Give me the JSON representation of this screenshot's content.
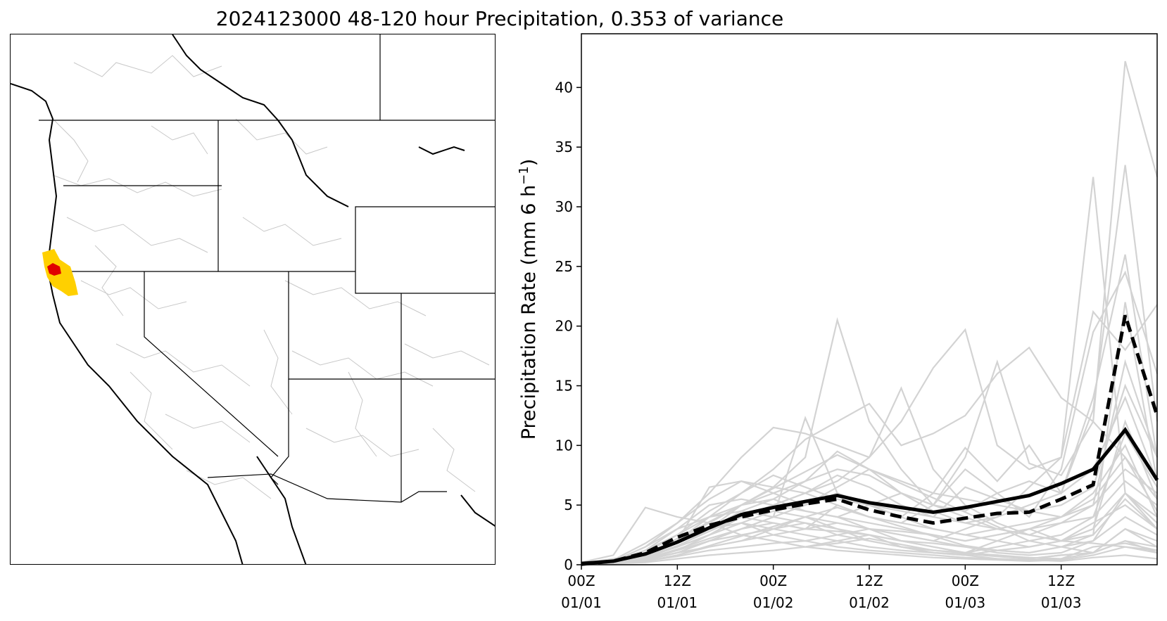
{
  "title": "2024123000 48-120 hour Precipitation, 0.353 of variance",
  "colors": {
    "member": "#d3d3d3",
    "mean": "#000000",
    "region_outer": "#ffd000",
    "region_core": "#e00000",
    "basin_lines": "#c8c8c8",
    "borders": "#000000"
  },
  "map": {
    "type": "map",
    "highlight_region": "northwest California coast (yellow area with red core)"
  },
  "chart_data": {
    "type": "line",
    "ylabel": "Precipitation Rate (mm 6 h",
    "ylabel_sup": "−1",
    "ylabel_close": ")",
    "ylim": [
      0,
      44.5
    ],
    "xlim": [
      0,
      18
    ],
    "yticks": [
      0,
      5,
      10,
      15,
      20,
      25,
      30,
      35,
      40
    ],
    "xticks": [
      {
        "x": 0,
        "line1": "00Z",
        "line2": "01/01"
      },
      {
        "x": 3,
        "line1": "12Z",
        "line2": "01/01"
      },
      {
        "x": 6,
        "line1": "00Z",
        "line2": "01/02"
      },
      {
        "x": 9,
        "line1": "12Z",
        "line2": "01/02"
      },
      {
        "x": 12,
        "line1": "00Z",
        "line2": "01/03"
      },
      {
        "x": 15,
        "line1": "12Z",
        "line2": "01/03"
      }
    ],
    "x": [
      0,
      1,
      2,
      3,
      4,
      5,
      6,
      7,
      8,
      9,
      10,
      11,
      12,
      13,
      14,
      15,
      16,
      17,
      18
    ],
    "series": [
      {
        "style": "solid-black",
        "values": [
          0.1,
          0.3,
          0.9,
          1.9,
          3.1,
          4.2,
          4.8,
          5.3,
          5.8,
          5.2,
          4.8,
          4.4,
          4.8,
          5.3,
          5.8,
          6.8,
          8.0,
          11.3,
          7.1
        ]
      },
      {
        "style": "dashed-black",
        "values": [
          0.05,
          0.3,
          1.0,
          2.3,
          3.3,
          4.0,
          4.6,
          5.1,
          5.5,
          4.6,
          4.0,
          3.5,
          3.9,
          4.3,
          4.4,
          5.5,
          6.7,
          20.9,
          12.5
        ]
      }
    ],
    "members": [
      [
        0.2,
        0.8,
        4.8,
        4.0,
        3.5,
        2.5,
        2.0,
        1.5,
        2.0,
        2.5,
        1.5,
        1.0,
        0.8,
        0.5,
        0.4,
        0.3,
        0.6,
        0.8,
        0.5
      ],
      [
        0.1,
        0.5,
        1.0,
        2.0,
        3.0,
        5.0,
        6.5,
        9.0,
        20.5,
        12.0,
        8.0,
        5.0,
        4.0,
        3.0,
        2.5,
        2.0,
        1.8,
        1.5,
        1.2
      ],
      [
        0.0,
        0.3,
        1.5,
        3.5,
        6.0,
        9.0,
        11.5,
        11.0,
        10.0,
        9.0,
        14.8,
        8.0,
        5.0,
        3.5,
        2.5,
        2.0,
        3.0,
        6.0,
        4.0
      ],
      [
        0.0,
        0.2,
        0.8,
        2.0,
        4.0,
        6.0,
        8.0,
        10.5,
        12.0,
        13.5,
        10.0,
        11.0,
        12.5,
        16.0,
        18.2,
        14.0,
        12.0,
        9.0,
        5.5
      ],
      [
        0.0,
        0.1,
        0.5,
        1.2,
        2.5,
        4.0,
        5.0,
        6.0,
        7.0,
        9.0,
        12.0,
        16.5,
        19.7,
        10.0,
        8.0,
        9.0,
        32.5,
        6.0,
        3.0
      ],
      [
        0.0,
        0.2,
        1.0,
        2.0,
        3.0,
        4.5,
        5.5,
        7.0,
        8.0,
        7.5,
        6.0,
        5.0,
        9.0,
        17.0,
        8.5,
        7.5,
        12.0,
        42.2,
        32.5
      ],
      [
        0.0,
        0.4,
        1.8,
        3.5,
        5.5,
        7.0,
        6.0,
        5.0,
        6.5,
        8.0,
        6.0,
        4.5,
        3.5,
        4.0,
        6.5,
        9.0,
        21.2,
        18.0,
        21.8
      ],
      [
        0.0,
        0.1,
        0.4,
        1.0,
        2.0,
        3.0,
        4.0,
        12.3,
        6.0,
        5.0,
        4.0,
        6.0,
        9.8,
        7.0,
        10.0,
        6.0,
        13.0,
        33.5,
        12.0
      ],
      [
        0.0,
        0.3,
        1.2,
        2.5,
        4.0,
        5.0,
        5.5,
        4.5,
        4.0,
        3.0,
        2.5,
        2.0,
        3.0,
        4.0,
        5.0,
        6.0,
        14.0,
        26.0,
        9.0
      ],
      [
        0.0,
        0.2,
        0.7,
        1.5,
        3.0,
        4.0,
        3.5,
        3.0,
        5.0,
        4.0,
        3.5,
        5.0,
        8.0,
        6.0,
        4.0,
        8.0,
        19.5,
        24.5,
        16.0
      ],
      [
        0.0,
        0.1,
        0.3,
        0.8,
        1.5,
        2.0,
        3.0,
        4.0,
        3.0,
        2.0,
        1.5,
        1.2,
        1.0,
        2.0,
        3.0,
        2.0,
        2.5,
        22.0,
        7.0
      ],
      [
        0.0,
        0.3,
        0.9,
        2.0,
        6.5,
        7.0,
        6.5,
        6.0,
        7.5,
        6.5,
        5.0,
        4.0,
        6.5,
        5.5,
        4.5,
        5.0,
        6.5,
        15.0,
        9.0
      ],
      [
        0.0,
        0.2,
        0.6,
        1.5,
        2.5,
        3.5,
        2.5,
        2.0,
        2.5,
        3.0,
        2.0,
        1.5,
        1.0,
        1.5,
        2.0,
        1.5,
        1.0,
        3.0,
        1.5
      ],
      [
        0.0,
        0.1,
        0.5,
        1.0,
        2.0,
        2.5,
        2.0,
        1.5,
        1.8,
        2.2,
        1.7,
        1.2,
        1.0,
        0.8,
        0.6,
        0.5,
        1.0,
        2.0,
        1.0
      ],
      [
        0.0,
        0.2,
        1.0,
        2.5,
        4.5,
        6.0,
        7.5,
        6.5,
        5.5,
        5.0,
        4.5,
        4.0,
        3.5,
        3.0,
        2.5,
        3.5,
        5.0,
        8.0,
        6.0
      ],
      [
        0.0,
        0.1,
        0.4,
        1.0,
        1.5,
        2.0,
        2.5,
        3.0,
        3.5,
        3.0,
        2.5,
        2.0,
        1.5,
        1.0,
        0.8,
        1.0,
        2.0,
        4.0,
        2.5
      ],
      [
        0.0,
        0.3,
        1.5,
        3.0,
        5.0,
        5.5,
        5.0,
        4.5,
        4.0,
        3.5,
        3.0,
        2.5,
        2.0,
        2.5,
        3.0,
        4.0,
        6.0,
        10.0,
        4.0
      ],
      [
        0.0,
        0.2,
        0.8,
        1.8,
        3.0,
        3.5,
        3.0,
        2.5,
        2.0,
        1.5,
        1.2,
        1.0,
        0.8,
        1.2,
        1.5,
        2.0,
        3.5,
        5.0,
        3.0
      ],
      [
        0.0,
        0.1,
        0.3,
        0.7,
        1.2,
        1.5,
        1.8,
        2.0,
        1.5,
        1.2,
        1.0,
        0.8,
        0.6,
        0.5,
        0.4,
        0.5,
        1.5,
        1.8,
        1.2
      ],
      [
        0.0,
        0.2,
        0.7,
        1.5,
        2.5,
        3.5,
        4.5,
        4.0,
        3.5,
        3.0,
        2.8,
        2.5,
        2.0,
        2.5,
        3.0,
        3.5,
        4.0,
        7.0,
        5.0
      ],
      [
        0.0,
        0.1,
        0.4,
        1.0,
        2.0,
        3.0,
        4.0,
        5.0,
        6.0,
        5.0,
        4.0,
        3.0,
        2.5,
        2.0,
        1.5,
        2.0,
        3.0,
        12.0,
        5.5
      ],
      [
        0.0,
        0.2,
        0.6,
        1.2,
        2.0,
        2.5,
        3.0,
        3.5,
        2.5,
        2.0,
        1.5,
        1.0,
        0.9,
        0.7,
        0.5,
        0.8,
        1.0,
        3.0,
        2.0
      ],
      [
        0.0,
        0.3,
        1.0,
        2.0,
        3.5,
        5.0,
        6.0,
        7.0,
        9.5,
        8.0,
        7.0,
        6.0,
        5.5,
        5.0,
        4.5,
        4.0,
        5.0,
        17.0,
        9.0
      ],
      [
        0.0,
        0.1,
        0.2,
        0.5,
        0.8,
        1.0,
        1.2,
        1.5,
        1.2,
        1.0,
        0.8,
        0.6,
        0.5,
        0.4,
        0.3,
        0.4,
        0.8,
        1.5,
        1.0
      ],
      [
        0.0,
        0.2,
        0.9,
        2.0,
        3.0,
        4.0,
        5.0,
        4.5,
        4.0,
        5.0,
        6.0,
        5.0,
        4.5,
        6.0,
        7.0,
        6.0,
        8.0,
        14.0,
        7.0
      ],
      [
        0.0,
        0.1,
        0.5,
        1.3,
        2.2,
        3.0,
        3.5,
        3.0,
        2.8,
        2.5,
        2.0,
        1.8,
        1.5,
        1.2,
        1.0,
        1.5,
        2.0,
        6.0,
        3.5
      ],
      [
        0.0,
        0.2,
        0.7,
        1.6,
        2.8,
        4.0,
        5.0,
        6.0,
        5.0,
        4.0,
        3.5,
        3.0,
        2.5,
        3.0,
        3.5,
        4.0,
        5.5,
        9.0,
        4.5
      ],
      [
        0.0,
        0.3,
        1.2,
        3.0,
        4.0,
        4.5,
        4.0,
        3.5,
        3.0,
        2.5,
        2.0,
        1.5,
        1.0,
        0.8,
        0.5,
        0.8,
        1.0,
        2.0,
        1.5
      ],
      [
        0.0,
        0.1,
        0.3,
        0.8,
        1.6,
        2.4,
        3.2,
        4.0,
        4.8,
        4.0,
        3.2,
        2.4,
        1.6,
        1.2,
        1.0,
        1.5,
        2.5,
        5.5,
        3.0
      ],
      [
        0.0,
        0.2,
        0.8,
        2.2,
        3.6,
        5.0,
        6.4,
        7.8,
        9.2,
        8.0,
        6.8,
        5.6,
        4.4,
        3.2,
        2.0,
        2.5,
        4.0,
        11.0,
        6.5
      ]
    ]
  }
}
